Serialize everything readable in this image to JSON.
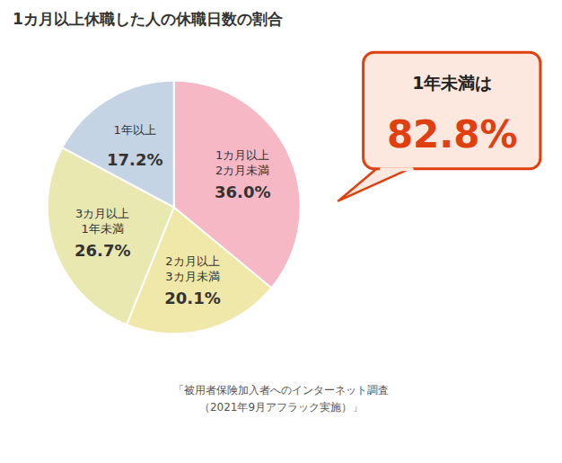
{
  "chart_data": {
    "type": "pie",
    "title": "1カ月以上休職した人の休職日数の割合",
    "categories": [
      "1カ月以上\n2カ月未満",
      "2カ月以上\n3カ月未満",
      "3カ月以上\n1年未満",
      "1年以上"
    ],
    "values": [
      36.0,
      20.1,
      26.7,
      17.2
    ],
    "value_labels": [
      "36.0%",
      "20.1%",
      "26.7%",
      "17.2%"
    ],
    "colors": [
      "#f5b8c4",
      "#f0e8a8",
      "#e8e8b0",
      "#c4d4e4"
    ],
    "data_labels": true,
    "annotations": [
      {
        "text": "1年未満は",
        "color": "#222222"
      },
      {
        "text": "82.8%",
        "color": "#e04010"
      }
    ],
    "caption": "「被用者保険加入者へのインターネット調査\n（2021年9月アフラック実施）」"
  }
}
